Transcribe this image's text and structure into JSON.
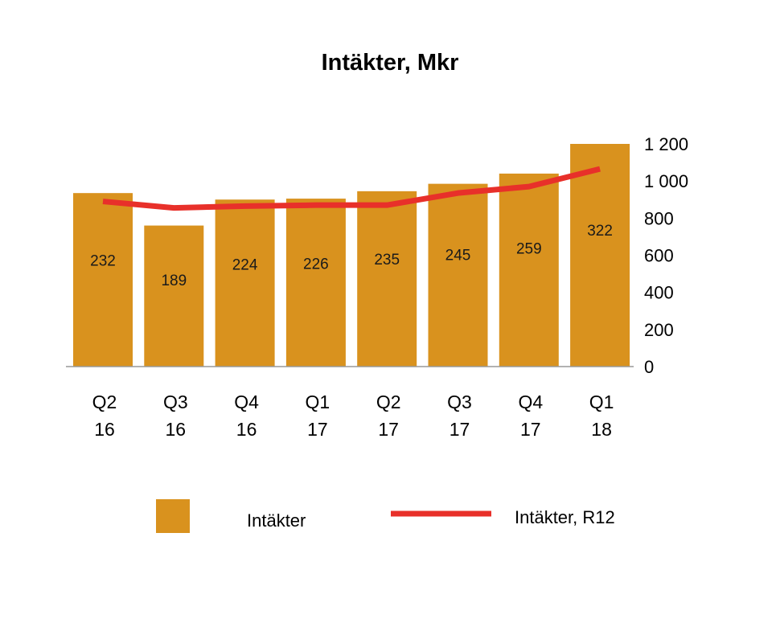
{
  "chart_data": {
    "type": "bar+line",
    "title": "Intäkter, Mkr",
    "categories": [
      {
        "line1": "Q2",
        "line2": "16"
      },
      {
        "line1": "Q3",
        "line2": "16"
      },
      {
        "line1": "Q4",
        "line2": "16"
      },
      {
        "line1": "Q1",
        "line2": "17"
      },
      {
        "line1": "Q2",
        "line2": "17"
      },
      {
        "line1": "Q3",
        "line2": "17"
      },
      {
        "line1": "Q4",
        "line2": "17"
      },
      {
        "line1": "Q1",
        "line2": "18"
      }
    ],
    "y_axis": {
      "position": "right",
      "min": 0,
      "max": 1200,
      "ticks": [
        {
          "value": 0,
          "label": "0"
        },
        {
          "value": 200,
          "label": "200"
        },
        {
          "value": 400,
          "label": "400"
        },
        {
          "value": 600,
          "label": "600"
        },
        {
          "value": 800,
          "label": "800"
        },
        {
          "value": 1000,
          "label": "1 000"
        },
        {
          "value": 1200,
          "label": "1 200"
        }
      ]
    },
    "series": [
      {
        "name": "Intäkter",
        "type": "bar",
        "color": "#D9921E",
        "bar_values_on_axis": [
          935,
          760,
          900,
          905,
          945,
          985,
          1040,
          1200
        ],
        "data_labels": [
          "232",
          "189",
          "224",
          "226",
          "235",
          "245",
          "259",
          "322"
        ]
      },
      {
        "name": "Intäkter, R12",
        "type": "line",
        "color": "#E8302A",
        "values": [
          890,
          855,
          865,
          870,
          870,
          935,
          970,
          1065
        ]
      }
    ],
    "legend": {
      "placement": "bottom",
      "items": [
        {
          "label": "Intäkter",
          "symbol": "square",
          "color": "#D9921E"
        },
        {
          "label": "Intäkter, R12",
          "symbol": "line",
          "color": "#E8302A"
        }
      ]
    }
  }
}
